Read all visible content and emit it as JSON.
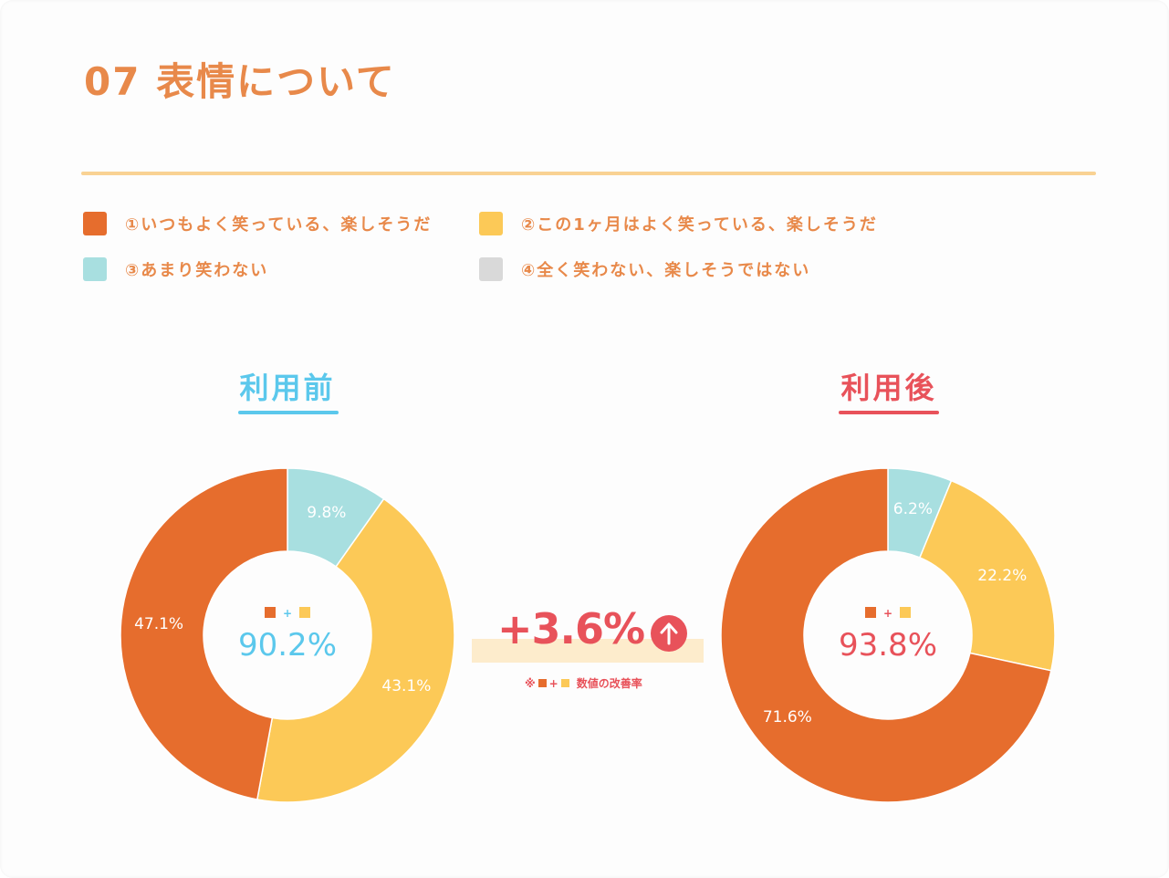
{
  "header": {
    "title": "07 表情について"
  },
  "colors": {
    "c1": "#e66d2d",
    "c2": "#fcc957",
    "c3": "#a8dfe0",
    "c4": "#d9d9d9",
    "before_accent": "#5bc8ec",
    "after_accent": "#e8525a",
    "title_color": "#e8894a"
  },
  "legend": [
    {
      "label": "①いつもよく笑っている、楽しそうだ",
      "color": "#e66d2d"
    },
    {
      "label": "②この1ヶ月はよく笑っている、楽しそうだ",
      "color": "#fcc957"
    },
    {
      "label": "③あまり笑わない",
      "color": "#a8dfe0"
    },
    {
      "label": "④全く笑わない、楽しそうではない",
      "color": "#d9d9d9"
    }
  ],
  "before": {
    "title": "利用前",
    "center_value": "90.2%",
    "plus": "+"
  },
  "after": {
    "title": "利用後",
    "center_value": "93.8%",
    "plus": "+"
  },
  "improvement": {
    "value": "+3.6%",
    "note_prefix": "※",
    "note_plus": "+",
    "note_suffix": "数値の改善率"
  },
  "chart_data": [
    {
      "type": "pie",
      "title": "利用前",
      "categories": [
        "①いつもよく笑っている、楽しそうだ",
        "②この1ヶ月はよく笑っている、楽しそうだ",
        "③あまり笑わない"
      ],
      "values": [
        47.1,
        43.1,
        9.8
      ],
      "labels": [
        "47.1%",
        "43.1%",
        "9.8%"
      ]
    },
    {
      "type": "pie",
      "title": "利用後",
      "categories": [
        "①いつもよく笑っている、楽しそうだ",
        "②この1ヶ月はよく笑っている、楽しそうだ",
        "③あまり笑わない"
      ],
      "values": [
        71.6,
        22.2,
        6.2
      ],
      "labels": [
        "71.6%",
        "22.2%",
        "6.2%"
      ]
    }
  ]
}
